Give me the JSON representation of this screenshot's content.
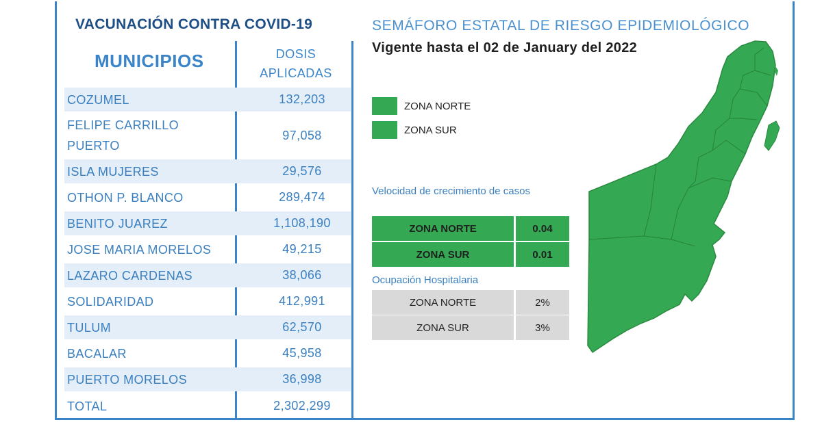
{
  "left": {
    "title": "VACUNACIÓN CONTRA COVID-19",
    "headers": {
      "municipios": "MUNICIPIOS",
      "dosis_line1": "DOSIS",
      "dosis_line2": "APLICADAS"
    },
    "rows": [
      {
        "municipio": "COZUMEL",
        "dosis": "132,203"
      },
      {
        "municipio": "FELIPE CARRILLO PUERTO",
        "dosis": "97,058"
      },
      {
        "municipio": "ISLA MUJERES",
        "dosis": "29,576"
      },
      {
        "municipio": "OTHON P. BLANCO",
        "dosis": "289,474"
      },
      {
        "municipio": "BENITO JUAREZ",
        "dosis": "1,108,190"
      },
      {
        "municipio": "JOSE MARIA MORELOS",
        "dosis": "49,215"
      },
      {
        "municipio": "LAZARO CARDENAS",
        "dosis": "38,066"
      },
      {
        "municipio": "SOLIDARIDAD",
        "dosis": "412,991"
      },
      {
        "municipio": "TULUM",
        "dosis": "62,570"
      },
      {
        "municipio": "BACALAR",
        "dosis": "45,958"
      },
      {
        "municipio": "PUERTO MORELOS",
        "dosis": "36,998"
      },
      {
        "municipio": "TOTAL",
        "dosis": "2,302,299"
      }
    ]
  },
  "right": {
    "title": "SEMÁFORO ESTATAL DE RIESGO EPIDEMIOLÓGICO",
    "subtitle": "Vigente hasta el 02 de January del 2022",
    "legend": [
      {
        "label": "ZONA NORTE",
        "color": "#34a853"
      },
      {
        "label": "ZONA SUR",
        "color": "#34a853"
      }
    ],
    "velocidad": {
      "title": "Velocidad de crecimiento de casos",
      "rows": [
        {
          "zona": "ZONA NORTE",
          "valor": "0.04"
        },
        {
          "zona": "ZONA SUR",
          "valor": "0.01"
        }
      ]
    },
    "ocupacion": {
      "title": "Ocupación Hospitalaria",
      "rows": [
        {
          "zona": "ZONA NORTE",
          "valor": "2%"
        },
        {
          "zona": "ZONA SUR",
          "valor": "3%"
        }
      ]
    },
    "map_color": "#34a853"
  }
}
